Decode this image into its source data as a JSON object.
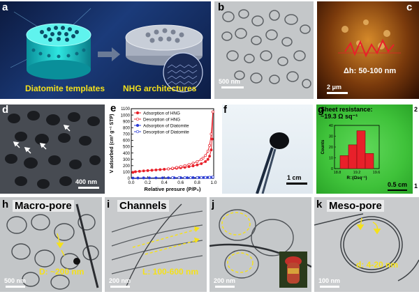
{
  "labels": {
    "a": "a",
    "b": "b",
    "c": "c",
    "d": "d",
    "e": "e",
    "f": "f",
    "g": "g",
    "h": "h",
    "i": "i",
    "j": "j",
    "k": "k"
  },
  "panel_a": {
    "left_caption": "Diatomite templates",
    "right_caption": "NHG architectures"
  },
  "panel_b": {
    "scale": "500 nm"
  },
  "panel_c": {
    "height": "Δh: 50-100 nm",
    "scale": "2 μm"
  },
  "panel_d": {
    "scale": "400 nm"
  },
  "panel_f": {
    "scale": "1 cm"
  },
  "panel_g": {
    "title_line1": "Sheet resistance:",
    "title_line2": "~19.3 Ω sq⁻¹",
    "scale": "0.5 cm",
    "edge_top": "2",
    "edge_bottom": "1"
  },
  "panel_h": {
    "title": "Macro-pore",
    "dim": "D: ~200 nm",
    "scale": "500 nm"
  },
  "panel_i": {
    "title": "Channels",
    "dim": "L: 100-600 nm",
    "scale": "200 nm"
  },
  "panel_j": {
    "scale": "200 nm"
  },
  "panel_k": {
    "title": "Meso-pore",
    "dim": "d: 4-20 nm",
    "scale": "100 nm"
  },
  "colors": {
    "red": "#e8202a",
    "blue": "#2a3bd6",
    "yellow": "#f5e11a",
    "green": "#3fc23a"
  },
  "chart_data": [
    {
      "type": "line",
      "title": "",
      "xlabel": "Relative presure (P/P₀)",
      "ylabel": "V adsorbed (cm³ g⁻¹ STP)",
      "xlim": [
        0.0,
        1.0
      ],
      "ylim": [
        0,
        1100
      ],
      "xticks": [
        "0.0",
        "0.2",
        "0.4",
        "0.6",
        "0.8",
        "1.0"
      ],
      "yticks": [
        "0",
        "100",
        "200",
        "300",
        "400",
        "500",
        "600",
        "700",
        "800",
        "900",
        "1000",
        "1100"
      ],
      "legend": "top-left",
      "series": [
        {
          "name": "Adsorption of HNG",
          "color": "#e8202a",
          "filled": true,
          "x": [
            0.02,
            0.05,
            0.1,
            0.15,
            0.2,
            0.25,
            0.3,
            0.35,
            0.4,
            0.45,
            0.5,
            0.55,
            0.6,
            0.65,
            0.7,
            0.75,
            0.8,
            0.85,
            0.9,
            0.93,
            0.95,
            0.97,
            0.98,
            0.99
          ],
          "y": [
            95,
            105,
            112,
            118,
            123,
            128,
            133,
            138,
            143,
            148,
            153,
            160,
            167,
            175,
            185,
            197,
            212,
            232,
            265,
            300,
            350,
            450,
            620,
            1050
          ]
        },
        {
          "name": "Desorption of HNG",
          "color": "#e8202a",
          "filled": false,
          "x": [
            0.99,
            0.97,
            0.95,
            0.93,
            0.9,
            0.87,
            0.85,
            0.8,
            0.75,
            0.7,
            0.65,
            0.6,
            0.55,
            0.5,
            0.45
          ],
          "y": [
            1050,
            700,
            520,
            430,
            360,
            320,
            300,
            265,
            240,
            218,
            200,
            185,
            172,
            160,
            150
          ]
        },
        {
          "name": "Adsorption of Diatomite",
          "color": "#2a3bd6",
          "filled": true,
          "x": [
            0.02,
            0.08,
            0.15,
            0.22,
            0.3,
            0.38,
            0.45,
            0.52,
            0.6,
            0.68,
            0.75,
            0.82,
            0.88,
            0.93,
            0.97,
            0.99
          ],
          "y": [
            5,
            6,
            7,
            7,
            8,
            8,
            9,
            9,
            10,
            10,
            11,
            12,
            13,
            14,
            16,
            20
          ]
        },
        {
          "name": "Desorption of Diatomite",
          "color": "#2a3bd6",
          "filled": false,
          "x": [
            0.99,
            0.95,
            0.9,
            0.85,
            0.8,
            0.72,
            0.65,
            0.58,
            0.5
          ],
          "y": [
            20,
            17,
            15,
            14,
            13,
            12,
            11,
            10,
            10
          ]
        }
      ]
    },
    {
      "type": "bar",
      "title": "",
      "xlabel": "R□(Ωsq⁻¹)",
      "ylabel": "Counts",
      "categories": [
        "18.8-19.0",
        "19.0-19.2",
        "19.2-19.4",
        "19.4-19.6"
      ],
      "xticks": [
        "18.8",
        "19.2",
        "19.6"
      ],
      "yticks": [
        "0",
        "10",
        "20",
        "30",
        "40"
      ],
      "values": [
        12,
        22,
        35,
        14
      ],
      "ylim": [
        0,
        40
      ]
    }
  ]
}
